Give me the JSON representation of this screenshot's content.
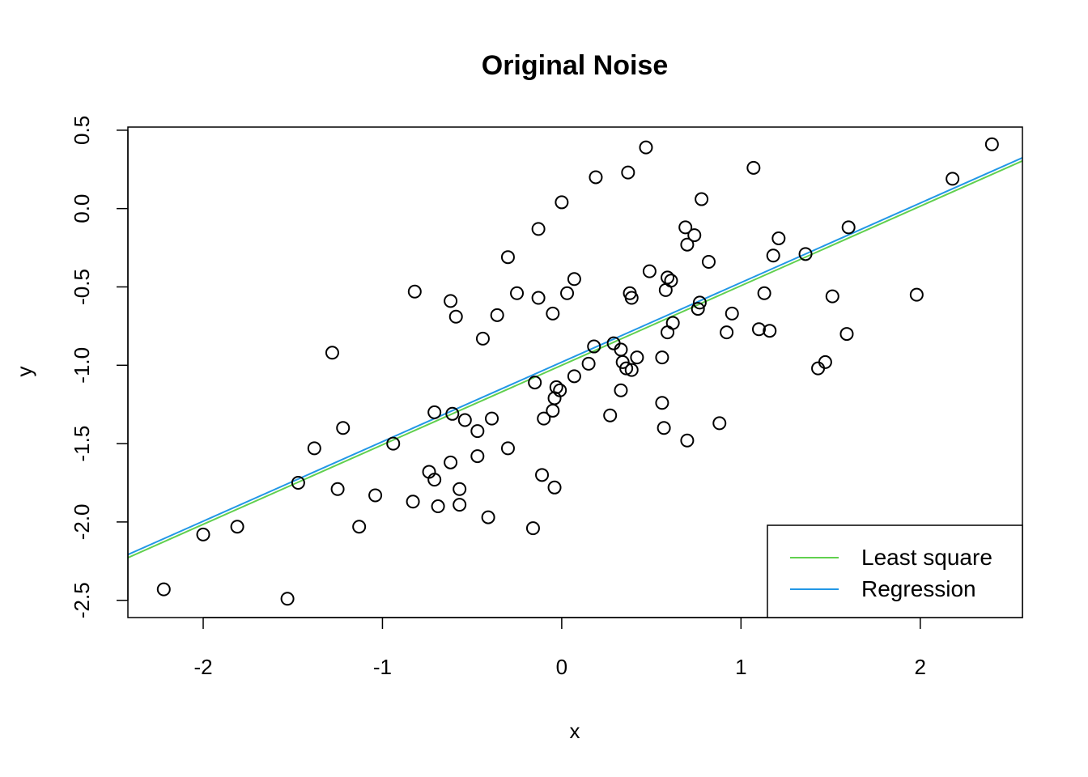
{
  "chart_data": {
    "type": "scatter",
    "title": "Original Noise",
    "xlabel": "x",
    "ylabel": "y",
    "xlim": [
      -2.42,
      2.57
    ],
    "ylim": [
      -2.61,
      0.52
    ],
    "x_ticks": [
      {
        "value": -2,
        "label": "-2"
      },
      {
        "value": -1,
        "label": "-1"
      },
      {
        "value": 0,
        "label": "0"
      },
      {
        "value": 1,
        "label": "1"
      },
      {
        "value": 2,
        "label": "2"
      }
    ],
    "y_ticks": [
      {
        "value": -2.5,
        "label": "-2.5"
      },
      {
        "value": -2.0,
        "label": "-2.0"
      },
      {
        "value": -1.5,
        "label": "-1.5"
      },
      {
        "value": -1.0,
        "label": "-1.0"
      },
      {
        "value": -0.5,
        "label": "-0.5"
      },
      {
        "value": 0.0,
        "label": "0.0"
      },
      {
        "value": 0.5,
        "label": "0.5"
      }
    ],
    "points": [
      [
        -2.22,
        -2.43
      ],
      [
        -2.0,
        -2.08
      ],
      [
        -1.81,
        -2.03
      ],
      [
        -1.53,
        -2.49
      ],
      [
        -1.47,
        -1.75
      ],
      [
        -1.38,
        -1.53
      ],
      [
        -1.28,
        -0.92
      ],
      [
        -1.25,
        -1.79
      ],
      [
        -1.22,
        -1.4
      ],
      [
        -1.13,
        -2.03
      ],
      [
        -1.04,
        -1.83
      ],
      [
        -0.94,
        -1.5
      ],
      [
        -0.82,
        -0.53
      ],
      [
        -0.83,
        -1.87
      ],
      [
        -0.74,
        -1.68
      ],
      [
        -0.71,
        -1.3
      ],
      [
        -0.71,
        -1.73
      ],
      [
        -0.69,
        -1.9
      ],
      [
        -0.62,
        -0.59
      ],
      [
        -0.62,
        -1.62
      ],
      [
        -0.61,
        -1.31
      ],
      [
        -0.59,
        -0.69
      ],
      [
        -0.57,
        -1.79
      ],
      [
        -0.57,
        -1.89
      ],
      [
        -0.54,
        -1.35
      ],
      [
        -0.47,
        -1.42
      ],
      [
        -0.47,
        -1.58
      ],
      [
        -0.44,
        -0.83
      ],
      [
        -0.41,
        -1.97
      ],
      [
        -0.39,
        -1.34
      ],
      [
        -0.36,
        -0.68
      ],
      [
        -0.3,
        -0.31
      ],
      [
        -0.3,
        -1.53
      ],
      [
        -0.25,
        -0.54
      ],
      [
        -0.16,
        -2.04
      ],
      [
        -0.15,
        -1.11
      ],
      [
        -0.13,
        -0.13
      ],
      [
        -0.13,
        -0.57
      ],
      [
        -0.11,
        -1.7
      ],
      [
        -0.1,
        -1.34
      ],
      [
        -0.05,
        -0.67
      ],
      [
        -0.05,
        -1.29
      ],
      [
        -0.04,
        -1.78
      ],
      [
        -0.04,
        -1.21
      ],
      [
        -0.03,
        -1.14
      ],
      [
        -0.01,
        -1.16
      ],
      [
        0.0,
        0.04
      ],
      [
        0.03,
        -0.54
      ],
      [
        0.07,
        -0.45
      ],
      [
        0.07,
        -1.07
      ],
      [
        0.15,
        -0.99
      ],
      [
        0.18,
        -0.88
      ],
      [
        0.19,
        0.2
      ],
      [
        0.27,
        -1.32
      ],
      [
        0.29,
        -0.86
      ],
      [
        0.33,
        -0.9
      ],
      [
        0.34,
        -0.98
      ],
      [
        0.33,
        -1.16
      ],
      [
        0.36,
        -1.02
      ],
      [
        0.37,
        0.23
      ],
      [
        0.38,
        -0.54
      ],
      [
        0.39,
        -0.57
      ],
      [
        0.39,
        -1.03
      ],
      [
        0.42,
        -0.95
      ],
      [
        0.47,
        0.39
      ],
      [
        0.49,
        -0.4
      ],
      [
        0.56,
        -0.95
      ],
      [
        0.56,
        -1.24
      ],
      [
        0.57,
        -1.4
      ],
      [
        0.58,
        -0.52
      ],
      [
        0.59,
        -0.44
      ],
      [
        0.59,
        -0.79
      ],
      [
        0.61,
        -0.46
      ],
      [
        0.62,
        -0.73
      ],
      [
        0.69,
        -0.12
      ],
      [
        0.7,
        -0.23
      ],
      [
        0.7,
        -1.48
      ],
      [
        0.74,
        -0.17
      ],
      [
        0.76,
        -0.64
      ],
      [
        0.77,
        -0.6
      ],
      [
        0.78,
        0.06
      ],
      [
        0.82,
        -0.34
      ],
      [
        0.88,
        -1.37
      ],
      [
        0.92,
        -0.79
      ],
      [
        0.95,
        -0.67
      ],
      [
        1.07,
        0.26
      ],
      [
        1.1,
        -0.77
      ],
      [
        1.13,
        -0.54
      ],
      [
        1.16,
        -0.78
      ],
      [
        1.18,
        -0.3
      ],
      [
        1.21,
        -0.19
      ],
      [
        1.36,
        -0.29
      ],
      [
        1.43,
        -1.02
      ],
      [
        1.47,
        -0.98
      ],
      [
        1.51,
        -0.56
      ],
      [
        1.59,
        -0.8
      ],
      [
        1.6,
        -0.12
      ],
      [
        1.98,
        -0.55
      ],
      [
        2.18,
        0.19
      ],
      [
        2.4,
        0.41
      ]
    ],
    "lines": [
      {
        "name": "Least square",
        "color": "#61d04f",
        "intercept": -1.0,
        "slope": 0.5075
      },
      {
        "name": "Regression",
        "color": "#2297e6",
        "intercept": -0.98,
        "slope": 0.5075
      }
    ],
    "legend_position": "bottom-right"
  }
}
